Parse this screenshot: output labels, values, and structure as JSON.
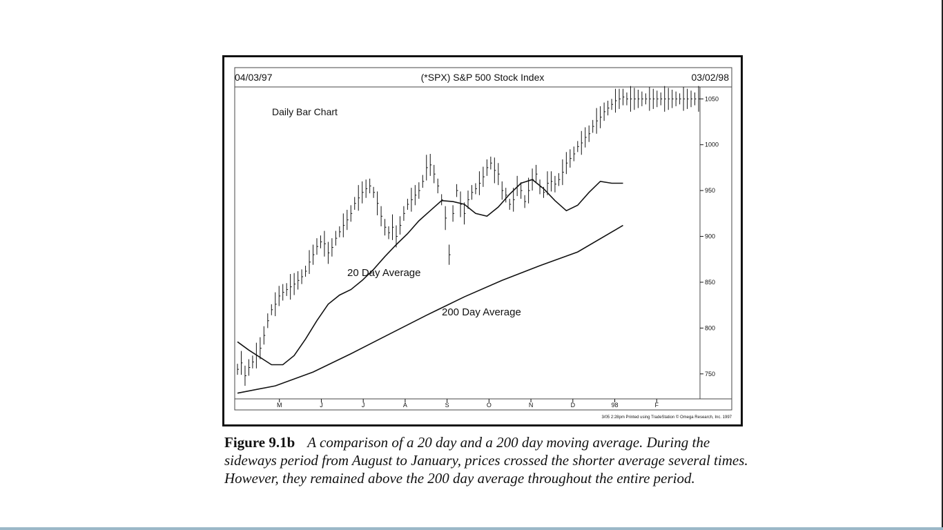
{
  "chart_data": {
    "type": "line",
    "title": "(*SPX) S&P 500 Stock Index",
    "start_date": "04/03/97",
    "end_date": "03/02/98",
    "ylim": [
      725,
      1060
    ],
    "y_ticks": [
      750,
      800,
      850,
      900,
      950,
      1000,
      1050
    ],
    "x_ticks": [
      "M",
      "J",
      "J",
      "A",
      "S",
      "O",
      "N",
      "D",
      "98",
      "F"
    ],
    "annotations": [
      "Daily Bar Chart",
      "20 Day Average",
      "200 Day Average"
    ],
    "footer": "3/05 2:28pm Printed using TradeStation © Omega Research, Inc. 1997",
    "series": [
      {
        "name": "Daily Bars",
        "x": [
          0,
          2,
          4,
          6,
          8,
          10,
          12,
          14,
          16,
          18,
          20,
          22,
          24,
          26,
          28,
          30,
          32,
          34,
          36,
          38,
          40,
          42,
          44,
          46,
          48,
          50,
          52,
          54,
          56,
          58,
          60,
          62,
          64,
          66,
          68,
          70,
          72,
          74,
          76,
          78,
          80,
          82,
          84,
          86,
          88,
          90,
          92,
          94,
          96,
          98,
          100,
          102,
          104,
          106,
          108,
          110,
          112,
          114,
          116,
          118,
          120,
          122,
          124,
          126,
          128,
          130,
          132,
          134,
          136,
          138,
          140,
          142,
          144,
          146,
          148,
          150,
          152,
          154,
          156,
          158,
          160,
          162,
          164,
          166,
          168,
          170,
          172,
          174,
          176,
          178,
          180,
          182,
          184,
          186,
          188,
          190,
          192,
          194,
          196,
          198,
          200,
          202,
          204,
          206,
          208,
          210,
          212,
          214,
          216,
          218,
          220,
          222,
          224,
          226,
          228,
          230,
          232,
          234,
          236,
          238,
          240,
          242,
          244
        ],
        "values": [
          755,
          762,
          748,
          757,
          763,
          770,
          778,
          792,
          808,
          820,
          826,
          835,
          839,
          842,
          845,
          848,
          852,
          856,
          862,
          872,
          880,
          889,
          894,
          892,
          882,
          888,
          898,
          905,
          912,
          918,
          925,
          936,
          942,
          948,
          952,
          955,
          948,
          936,
          922,
          910,
          904,
          910,
          900,
          912,
          925,
          935,
          940,
          945,
          950,
          960,
          975,
          978,
          968,
          955,
          940,
          920,
          880,
          925,
          950,
          935,
          925,
          940,
          948,
          952,
          958,
          965,
          975,
          980,
          972,
          968,
          950,
          945,
          935,
          940,
          955,
          950,
          938,
          950,
          962,
          968,
          954,
          948,
          958,
          960,
          957,
          962,
          970,
          980,
          985,
          990,
          998,
          1002,
          1008,
          1012,
          1020,
          1026,
          1030,
          1036,
          1040,
          1044,
          1048,
          1050,
          1052,
          1050,
          1050,
          1050,
          1050,
          1050,
          1050,
          1050,
          1050,
          1050,
          1050,
          1050,
          1050,
          1050,
          1050,
          1050,
          1050,
          1050,
          1050,
          1050,
          1050
        ]
      },
      {
        "name": "20 Day Average",
        "x": [
          0,
          6,
          12,
          18,
          24,
          30,
          36,
          42,
          48,
          54,
          60,
          66,
          72,
          78,
          84,
          90,
          96,
          102,
          108,
          114,
          120,
          126,
          132,
          138,
          144,
          150,
          156,
          162,
          168,
          174,
          180,
          186,
          192,
          198,
          204
        ],
        "values": [
          785,
          776,
          768,
          760,
          760,
          770,
          788,
          808,
          826,
          836,
          842,
          852,
          864,
          878,
          891,
          903,
          917,
          928,
          939,
          938,
          935,
          925,
          922,
          932,
          946,
          958,
          962,
          952,
          939,
          928,
          934,
          948,
          960,
          958,
          958
        ]
      },
      {
        "name": "200 Day Average",
        "x": [
          0,
          20,
          40,
          60,
          80,
          100,
          120,
          140,
          160,
          180,
          204
        ],
        "values": [
          729,
          737,
          752,
          772,
          793,
          814,
          834,
          852,
          868,
          883,
          912
        ]
      }
    ]
  },
  "chart_labels": {
    "title": "(*SPX) S&P 500 Stock Index",
    "start_date": "04/03/97",
    "end_date": "03/02/98",
    "daily_bar": "Daily Bar Chart",
    "ma20": "20 Day Average",
    "ma200": "200 Day Average",
    "footer": "3/05 2:28pm Printed using TradeStation © Omega Research, Inc. 1997"
  },
  "caption": {
    "label": "Figure 9.1b",
    "text": "A comparison of a 20 day and a 200 day moving average. During the sideways period from August to January, prices crossed the shorter average several times. However, they remained above the 200 day average throughout the entire period."
  }
}
